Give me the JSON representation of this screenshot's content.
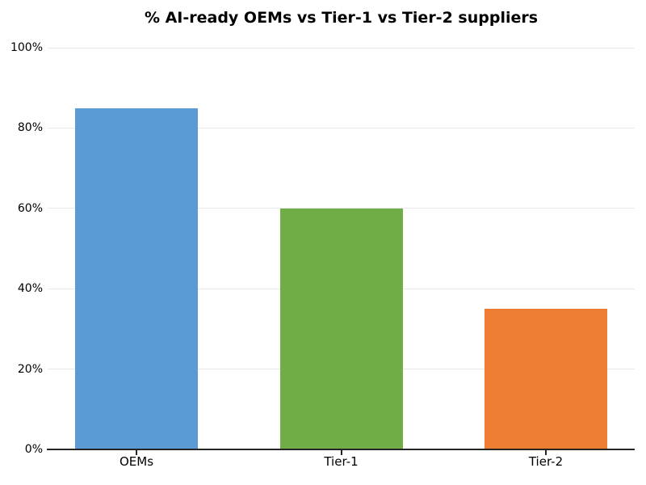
{
  "chart_data": {
    "type": "bar",
    "title": "% AI-ready OEMs vs Tier-1 vs Tier-2 suppliers",
    "categories": [
      "OEMs",
      "Tier-1",
      "Tier-2"
    ],
    "values": [
      85,
      60,
      35
    ],
    "unit": "%",
    "bar_colors": [
      "#5B9BD5",
      "#70AD47",
      "#ED7D31"
    ],
    "y_ticks": [
      {
        "value": 0,
        "label": "0%"
      },
      {
        "value": 20,
        "label": "20%"
      },
      {
        "value": 40,
        "label": "40%"
      },
      {
        "value": 60,
        "label": "60%"
      },
      {
        "value": 80,
        "label": "80%"
      },
      {
        "value": 100,
        "label": "100%"
      }
    ],
    "ylim": [
      0,
      100
    ],
    "xlabel": "",
    "ylabel": "",
    "grid": "horizontal-light",
    "legend": "none",
    "colors": {
      "axis": "#262626",
      "gridline": "#e9e9e9",
      "text": "#000000",
      "background": "#ffffff"
    }
  }
}
